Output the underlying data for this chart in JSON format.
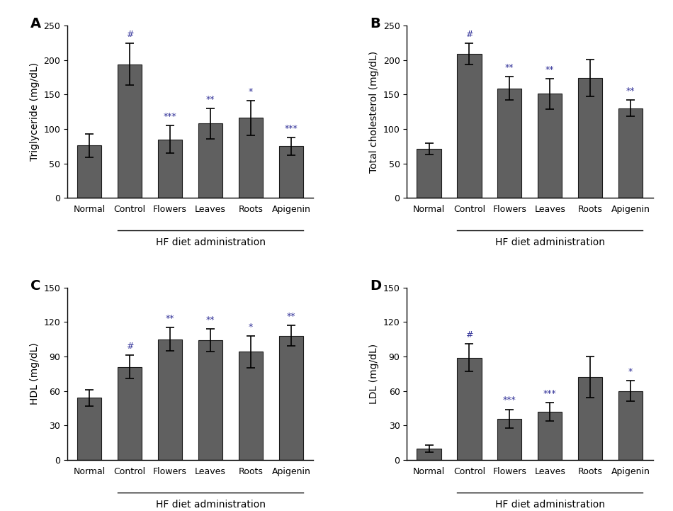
{
  "categories": [
    "Normal",
    "Control",
    "Flowers",
    "Leaves",
    "Roots",
    "Apigenin"
  ],
  "bar_color": "#606060",
  "edge_color": "#1a1a1a",
  "A": {
    "title": "A",
    "ylabel": "Triglyceride (mg/dL)",
    "ylim": [
      0,
      250
    ],
    "yticks": [
      0,
      50,
      100,
      150,
      200,
      250
    ],
    "values": [
      76,
      194,
      85,
      108,
      116,
      75
    ],
    "errors": [
      17,
      30,
      20,
      22,
      25,
      13
    ],
    "annotations": [
      "",
      "#",
      "***",
      "**",
      "*",
      "***"
    ]
  },
  "B": {
    "title": "B",
    "ylabel": "Total cholesterol (mg/dL)",
    "ylim": [
      0,
      250
    ],
    "yticks": [
      0,
      50,
      100,
      150,
      200,
      250
    ],
    "values": [
      71,
      209,
      159,
      151,
      174,
      130
    ],
    "errors": [
      8,
      15,
      17,
      22,
      27,
      12
    ],
    "annotations": [
      "",
      "#",
      "**",
      "**",
      "",
      "**"
    ]
  },
  "C": {
    "title": "C",
    "ylabel": "HDL (mg/dL)",
    "ylim": [
      0,
      150
    ],
    "yticks": [
      0,
      30,
      60,
      90,
      120,
      150
    ],
    "values": [
      54,
      81,
      105,
      104,
      94,
      108
    ],
    "errors": [
      7,
      10,
      10,
      10,
      14,
      9
    ],
    "annotations": [
      "",
      "#",
      "**",
      "**",
      "*",
      "**"
    ]
  },
  "D": {
    "title": "D",
    "ylabel": "LDL (mg/dL)",
    "ylim": [
      0,
      150
    ],
    "yticks": [
      0,
      30,
      60,
      90,
      120,
      150
    ],
    "values": [
      10,
      89,
      36,
      42,
      72,
      60
    ],
    "errors": [
      3,
      12,
      8,
      8,
      18,
      9
    ],
    "annotations": [
      "",
      "#",
      "***",
      "***",
      "",
      "*"
    ]
  },
  "xlabel_group": "HF diet administration",
  "ann_color": "#333399",
  "background_color": "#ffffff"
}
